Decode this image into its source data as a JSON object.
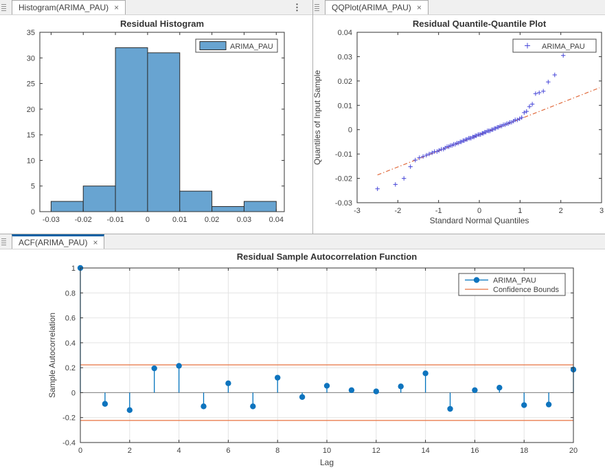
{
  "panels": {
    "histogram": {
      "tab": {
        "label": "Histogram(ARIMA_PAU)",
        "close": "×"
      },
      "menu_icon": "⋮"
    },
    "qqplot": {
      "tab": {
        "label": "QQPlot(ARIMA_PAU)",
        "close": "×"
      }
    },
    "acf": {
      "tab": {
        "label": "ACF(ARIMA_PAU)",
        "close": "×"
      }
    }
  },
  "colors": {
    "hist_fill": "#68A4D1",
    "hist_edge": "#2B2B2B",
    "matlab_blue": "#0072BD",
    "stem_marker": "#0E74BE",
    "orange_line": "#E8713F",
    "qq_marker": "#4646D8",
    "qq_line": "#E0693B",
    "grid": "#E4E4E4",
    "zero_line": "#7F7F7F",
    "axis": "#333333",
    "selected_tab_accent": "#0B61A4"
  },
  "chart_data": [
    {
      "type": "bar",
      "panel": "histogram",
      "title": "Residual Histogram",
      "xlabel": "",
      "ylabel": "",
      "bin_edges": [
        -0.03,
        -0.02,
        -0.01,
        0,
        0.01,
        0.02,
        0.03,
        0.04
      ],
      "counts": [
        2,
        5,
        32,
        31,
        4,
        1,
        2
      ],
      "xlim": [
        -0.0335,
        0.0425
      ],
      "ylim": [
        0,
        35
      ],
      "xticks": [
        -0.03,
        -0.02,
        -0.01,
        0,
        0.01,
        0.02,
        0.03,
        0.04
      ],
      "xtick_labels": [
        "-0.03",
        "-0.02",
        "-0.01",
        "0",
        "0.01",
        "0.02",
        "0.03",
        "0.04"
      ],
      "yticks": [
        0,
        5,
        10,
        15,
        20,
        25,
        30,
        35
      ],
      "ytick_labels": [
        "0",
        "5",
        "10",
        "15",
        "20",
        "25",
        "30",
        "35"
      ],
      "grid": false,
      "legend": {
        "position": "top-right-inside",
        "label": "ARIMA_PAU"
      }
    },
    {
      "type": "scatter",
      "panel": "qqplot",
      "title": "Residual Quantile-Quantile Plot",
      "xlabel": "Standard Normal Quantiles",
      "ylabel": "Quantiles of Input Sample",
      "xlim": [
        -3,
        3
      ],
      "ylim": [
        -0.03,
        0.04
      ],
      "xticks": [
        -3,
        -2,
        -1,
        0,
        1,
        2,
        3
      ],
      "xtick_labels": [
        "-3",
        "-2",
        "-1",
        "0",
        "1",
        "2",
        "3"
      ],
      "yticks": [
        -0.03,
        -0.02,
        -0.01,
        0,
        0.01,
        0.02,
        0.03,
        0.04
      ],
      "ytick_labels": [
        "-0.03",
        "-0.02",
        "-0.01",
        "0",
        "0.01",
        "0.02",
        "0.03",
        "0.04"
      ],
      "grid": false,
      "legend": {
        "position": "top-right-inside",
        "label": "ARIMA_PAU",
        "marker": "+"
      },
      "ref_line": {
        "x1": -2.5,
        "y1": -0.0186,
        "x2": 2.95,
        "y2": 0.0172,
        "style": "dash-dot"
      },
      "points": [
        [
          -2.5,
          -0.0243
        ],
        [
          -2.06,
          -0.0225
        ],
        [
          -1.85,
          -0.02
        ],
        [
          -1.69,
          -0.0152
        ],
        [
          -1.57,
          -0.0125
        ],
        [
          -1.47,
          -0.0115
        ],
        [
          -1.38,
          -0.011
        ],
        [
          -1.3,
          -0.0105
        ],
        [
          -1.23,
          -0.01
        ],
        [
          -1.16,
          -0.0095
        ],
        [
          -1.1,
          -0.009
        ],
        [
          -1.04,
          -0.009
        ],
        [
          -0.99,
          -0.0085
        ],
        [
          -0.93,
          -0.008
        ],
        [
          -0.88,
          -0.008
        ],
        [
          -0.84,
          -0.0075
        ],
        [
          -0.79,
          -0.007
        ],
        [
          -0.75,
          -0.007
        ],
        [
          -0.71,
          -0.0065
        ],
        [
          -0.67,
          -0.0065
        ],
        [
          -0.63,
          -0.006
        ],
        [
          -0.59,
          -0.006
        ],
        [
          -0.55,
          -0.0055
        ],
        [
          -0.51,
          -0.0055
        ],
        [
          -0.47,
          -0.005
        ],
        [
          -0.44,
          -0.005
        ],
        [
          -0.4,
          -0.0045
        ],
        [
          -0.37,
          -0.0045
        ],
        [
          -0.33,
          -0.004
        ],
        [
          -0.3,
          -0.004
        ],
        [
          -0.26,
          -0.0035
        ],
        [
          -0.23,
          -0.0035
        ],
        [
          -0.2,
          -0.0035
        ],
        [
          -0.16,
          -0.003
        ],
        [
          -0.13,
          -0.003
        ],
        [
          -0.1,
          -0.0025
        ],
        [
          -0.07,
          -0.0025
        ],
        [
          -0.03,
          -0.002
        ],
        [
          0.0,
          -0.002
        ],
        [
          0.03,
          -0.002
        ],
        [
          0.07,
          -0.0015
        ],
        [
          0.1,
          -0.0015
        ],
        [
          0.13,
          -0.001
        ],
        [
          0.16,
          -0.001
        ],
        [
          0.2,
          -0.0005
        ],
        [
          0.23,
          -0.0005
        ],
        [
          0.26,
          -0.0005
        ],
        [
          0.3,
          0.0
        ],
        [
          0.33,
          0.0
        ],
        [
          0.37,
          0.0005
        ],
        [
          0.4,
          0.0005
        ],
        [
          0.44,
          0.001
        ],
        [
          0.47,
          0.001
        ],
        [
          0.51,
          0.0015
        ],
        [
          0.55,
          0.0015
        ],
        [
          0.59,
          0.002
        ],
        [
          0.63,
          0.002
        ],
        [
          0.67,
          0.0025
        ],
        [
          0.71,
          0.0025
        ],
        [
          0.75,
          0.003
        ],
        [
          0.79,
          0.003
        ],
        [
          0.84,
          0.0035
        ],
        [
          0.88,
          0.004
        ],
        [
          0.93,
          0.004
        ],
        [
          0.99,
          0.0045
        ],
        [
          1.04,
          0.005
        ],
        [
          1.1,
          0.007
        ],
        [
          1.16,
          0.0075
        ],
        [
          1.23,
          0.0095
        ],
        [
          1.3,
          0.0105
        ],
        [
          1.38,
          0.0148
        ],
        [
          1.47,
          0.0152
        ],
        [
          1.57,
          0.0158
        ],
        [
          1.69,
          0.0196
        ],
        [
          1.85,
          0.0225
        ],
        [
          2.06,
          0.0305
        ]
      ]
    },
    {
      "type": "stem",
      "panel": "acf",
      "title": "Residual Sample Autocorrelation Function",
      "xlabel": "Lag",
      "ylabel": "Sample Autocorrelation",
      "lags": [
        0,
        1,
        2,
        3,
        4,
        5,
        6,
        7,
        8,
        9,
        10,
        11,
        12,
        13,
        14,
        15,
        16,
        17,
        18,
        19,
        20
      ],
      "values": [
        1.0,
        -0.09,
        -0.14,
        0.195,
        0.215,
        -0.11,
        0.075,
        -0.11,
        0.12,
        -0.035,
        0.055,
        0.02,
        0.01,
        0.05,
        0.155,
        -0.13,
        0.02,
        0.04,
        -0.1,
        -0.095,
        0.185
      ],
      "confidence_bounds": {
        "upper": 0.223,
        "lower": -0.223
      },
      "xlim": [
        0,
        20
      ],
      "ylim": [
        -0.4,
        1
      ],
      "xticks": [
        0,
        2,
        4,
        6,
        8,
        10,
        12,
        14,
        16,
        18,
        20
      ],
      "xtick_labels": [
        "0",
        "2",
        "4",
        "6",
        "8",
        "10",
        "12",
        "14",
        "16",
        "18",
        "20"
      ],
      "yticks": [
        -0.4,
        -0.2,
        0,
        0.2,
        0.4,
        0.6,
        0.8,
        1
      ],
      "ytick_labels": [
        "-0.4",
        "-0.2",
        "0",
        "0.2",
        "0.4",
        "0.6",
        "0.8",
        "1"
      ],
      "grid": true,
      "legend": {
        "position": "top-right-inside",
        "items": [
          {
            "label": "ARIMA_PAU"
          },
          {
            "label": "Confidence Bounds"
          }
        ]
      }
    }
  ]
}
